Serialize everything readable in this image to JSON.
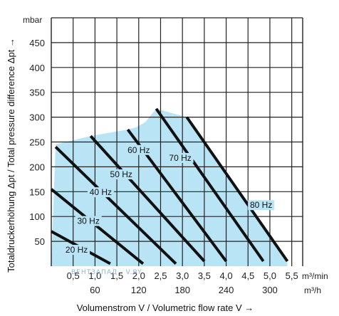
{
  "chart_data": {
    "type": "line",
    "ylabel": "Totaldruckerhöhung Δpt / Total pressure difference Δpt →",
    "xlabel": "Volumenstrom V / Volumetric flow rate V →",
    "y_unit": "mbar",
    "x_unit_primary": "m³/min",
    "x_unit_secondary": "m³/h",
    "xlim": [
      0,
      5.75
    ],
    "ylim": [
      0,
      500
    ],
    "grid": true,
    "y_ticks": [
      50,
      100,
      150,
      200,
      250,
      300,
      350,
      400,
      450
    ],
    "x_ticks_primary": [
      0.5,
      1.0,
      1.5,
      2.0,
      2.5,
      3.0,
      3.5,
      4.0,
      4.5,
      5.0,
      5.5
    ],
    "x_tick_labels_primary": [
      "0,5",
      "1,0",
      "1,5",
      "2,0",
      "2,5",
      "3,0",
      "3,5",
      "4,0",
      "4,5",
      "5,0",
      "5,5"
    ],
    "x_ticks_secondary": [
      60,
      120,
      180,
      240,
      300
    ],
    "x_tick_labels_secondary": [
      "60",
      "120",
      "180",
      "240",
      "300"
    ],
    "operating_region": {
      "color": "#b9e4f6",
      "x": [
        0.0,
        0.1,
        0.9,
        1.75,
        1.95,
        2.15,
        2.4,
        3.1,
        5.4,
        5.4,
        0.0
      ],
      "y": [
        0,
        245,
        262,
        275,
        280,
        290,
        317,
        300,
        10,
        0,
        0
      ]
    },
    "series": [
      {
        "name": "20 Hz",
        "x": [
          0.0,
          1.35
        ],
        "y": [
          70,
          5
        ]
      },
      {
        "name": "30 Hz",
        "x": [
          0.0,
          2.1
        ],
        "y": [
          155,
          5
        ]
      },
      {
        "name": "40 Hz",
        "x": [
          0.1,
          2.85
        ],
        "y": [
          240,
          5
        ]
      },
      {
        "name": "50 Hz",
        "x": [
          0.9,
          3.5
        ],
        "y": [
          262,
          10
        ]
      },
      {
        "name": "60 Hz",
        "x": [
          1.75,
          4.0
        ],
        "y": [
          275,
          10
        ]
      },
      {
        "name": "70 Hz",
        "x": [
          2.4,
          4.85
        ],
        "y": [
          317,
          10
        ]
      },
      {
        "name": "80 Hz",
        "x": [
          3.1,
          5.4
        ],
        "y": [
          300,
          10
        ]
      }
    ],
    "curve_labels": [
      {
        "text": "20 Hz",
        "x": 0.58,
        "y": 30
      },
      {
        "text": "30 Hz",
        "x": 0.85,
        "y": 88
      },
      {
        "text": "40 Hz",
        "x": 1.13,
        "y": 146
      },
      {
        "text": "50 Hz",
        "x": 1.6,
        "y": 182
      },
      {
        "text": "60 Hz",
        "x": 2.0,
        "y": 231
      },
      {
        "text": "70 Hz",
        "x": 2.95,
        "y": 215
      },
      {
        "text": "80 Hz",
        "x": 4.8,
        "y": 120
      }
    ],
    "watermark": "ВЕНТЗАПАД · V.BY"
  }
}
